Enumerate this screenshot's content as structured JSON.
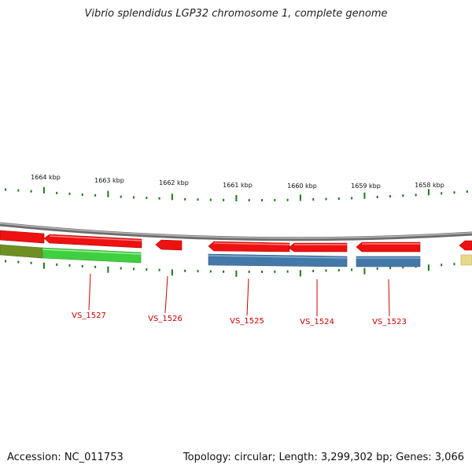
{
  "title": "Vibrio splendidus LGP32 chromosome 1, complete genome",
  "accession": "Accession: NC_011753",
  "summary": "Topology: circular; Length: 3,299,302 bp; Genes: 3,066",
  "colors": {
    "ticks": "#1a7a1a",
    "backbone": "#7a7a7a",
    "forward_gene": "#ee1111",
    "cds_green": "#3fcf3f",
    "cds_olive": "#6f8f23",
    "cds_blue": "#4478a8",
    "cds_yellow": "#e8d88a",
    "label": "#cc0000"
  },
  "kbp_labels": [
    "1664 kbp",
    "1663 kbp",
    "1662 kbp",
    "1661 kbp",
    "1660 kbp",
    "1659 kbp",
    "1658 kbp"
  ],
  "gene_labels": [
    "VS_1527",
    "VS_1526",
    "VS_1525",
    "VS_1524",
    "VS_1523"
  ]
}
